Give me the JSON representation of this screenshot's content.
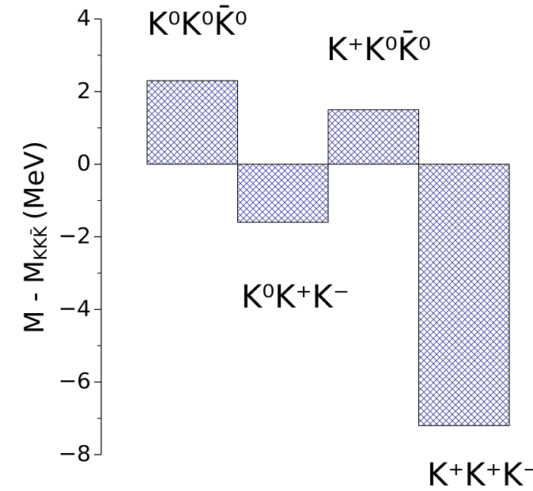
{
  "chart_data": {
    "type": "bar",
    "y_label": {
      "main": "M - M",
      "sub": "KKK̄",
      "unit": "(MeV)"
    },
    "categories": [
      null,
      null,
      null,
      null
    ],
    "values": [
      2.3,
      -1.6,
      1.5,
      -7.2
    ],
    "hatch_color": "#3b3ba3",
    "ylim": [
      -8,
      4
    ],
    "yticks": [
      {
        "value": -8,
        "label": "−8"
      },
      {
        "value": -6,
        "label": "−6"
      },
      {
        "value": -4,
        "label": "−4"
      },
      {
        "value": -2,
        "label": "−2"
      },
      0,
      2,
      4
    ],
    "yminorticks": [
      -7,
      -5,
      -3,
      -1,
      1,
      3
    ],
    "annotations": [
      "K⁰K⁰K̄⁰",
      "K⁺K⁰K̄⁰",
      "K⁰K⁺K⁻",
      "K⁺K⁺K⁻"
    ]
  }
}
